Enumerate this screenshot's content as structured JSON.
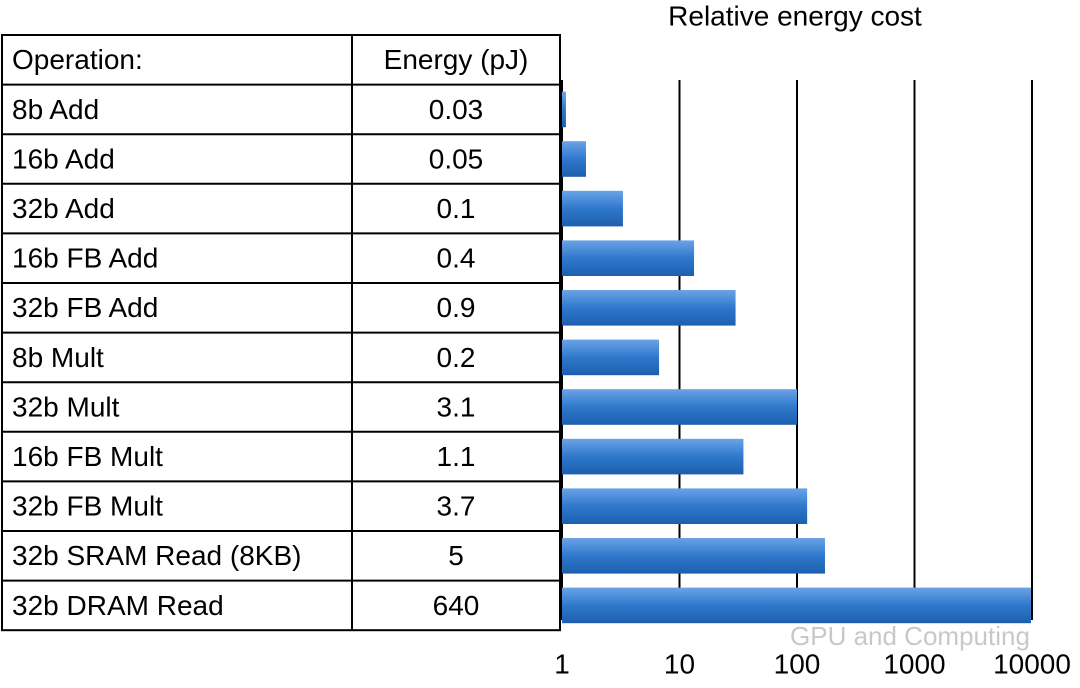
{
  "chart_data": {
    "type": "bar",
    "orientation": "horizontal",
    "title": "Relative energy cost",
    "table_header": [
      "Operation:",
      "Energy (pJ)"
    ],
    "categories": [
      "8b Add",
      "16b Add",
      "32b Add",
      "16b FB Add",
      "32b FB Add",
      "8b Mult",
      "32b Mult",
      "16b FB Mult",
      "32b FB Mult",
      "32b SRAM Read (8KB)",
      "32b DRAM Read"
    ],
    "energy_pj": [
      0.03,
      0.05,
      0.1,
      0.4,
      0.9,
      0.2,
      3.1,
      1.1,
      3.7,
      5,
      640
    ],
    "values": [
      1.08,
      1.6,
      3.3,
      13.3,
      30,
      6.7,
      100,
      35,
      122,
      173,
      9800
    ],
    "color": "#2f78cc",
    "xscale": "log",
    "xlim": [
      1,
      10000
    ],
    "xticks": [
      1,
      10,
      100,
      1000,
      10000
    ],
    "grid": true
  },
  "watermark": "GPU and Computing"
}
